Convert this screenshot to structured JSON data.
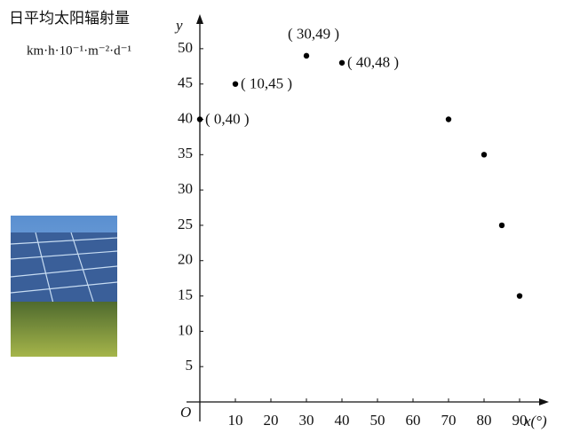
{
  "chart_data": {
    "type": "scatter",
    "title": "日平均太阳辐射量",
    "subtitle": "km·h·10⁻¹·m⁻²·d⁻¹",
    "y_label": "y",
    "x_label": "x(°)",
    "origin_label": "O",
    "x": [
      0,
      10,
      30,
      40,
      70,
      80,
      85,
      90
    ],
    "values": [
      40,
      45,
      49,
      48,
      40,
      35,
      25,
      15
    ],
    "point_labels": [
      "( 0,40 )",
      "( 10,45 )",
      "( 30,49 )",
      "( 40,48 )",
      null,
      null,
      null,
      null
    ],
    "color": "#000000",
    "xlim": [
      0,
      96
    ],
    "ylim": [
      0,
      53.5
    ],
    "xticks": [
      10,
      20,
      30,
      40,
      50,
      60,
      70,
      80,
      90
    ],
    "yticks": [
      5,
      10,
      15,
      20,
      25,
      30,
      35,
      40,
      45,
      50
    ],
    "grid": false
  }
}
